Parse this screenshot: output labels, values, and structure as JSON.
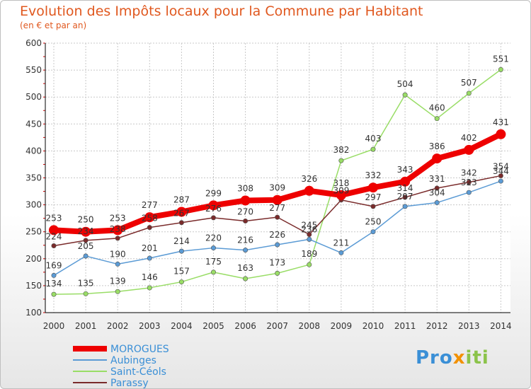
{
  "title": "Evolution des Impôts locaux pour la Commune par Habitant",
  "subtitle": "(en € et par an)",
  "logo": {
    "part1": "Pro",
    "part2": "x",
    "part3": "iti"
  },
  "chart_data": {
    "type": "line",
    "title": "Evolution des Impôts locaux pour la Commune par Habitant",
    "subtitle": "(en € et par an)",
    "x": [
      "2000",
      "2001",
      "2002",
      "2003",
      "2004",
      "2005",
      "2006",
      "2007",
      "2008",
      "2009",
      "2010",
      "2011",
      "2012",
      "2013",
      "2014"
    ],
    "ylim": [
      100,
      600
    ],
    "yticks": [
      "100",
      "150",
      "200",
      "250",
      "300",
      "350",
      "400",
      "450",
      "500",
      "550",
      "600"
    ],
    "grid": true,
    "legend_position": "bottom-left",
    "series": [
      {
        "name": "MOROGUES",
        "color": "#ee0000",
        "values": [
          253,
          250,
          253,
          277,
          287,
          299,
          308,
          309,
          326,
          318,
          332,
          343,
          386,
          402,
          431
        ]
      },
      {
        "name": "Aubinges",
        "color": "#5b9bd5",
        "values": [
          169,
          205,
          190,
          201,
          214,
          220,
          216,
          226,
          236,
          211,
          250,
          297,
          304,
          323,
          344
        ]
      },
      {
        "name": "Saint-Céols",
        "color": "#99dd66",
        "values": [
          134,
          135,
          139,
          146,
          157,
          175,
          163,
          173,
          189,
          382,
          403,
          504,
          460,
          507,
          551
        ]
      },
      {
        "name": "Parassy",
        "color": "#7a2b2b",
        "values": [
          224,
          234,
          238,
          258,
          267,
          276,
          270,
          277,
          245,
          309,
          297,
          314,
          331,
          342,
          354
        ]
      }
    ]
  }
}
